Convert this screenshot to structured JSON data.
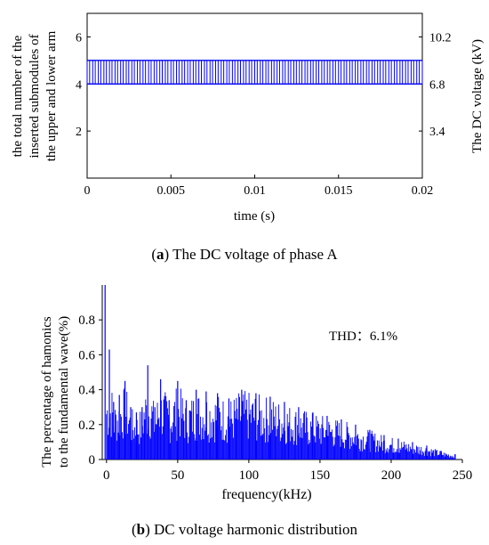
{
  "chart_data": [
    {
      "type": "line",
      "xlabel": "time (s)",
      "ylabel_lines": [
        "the total number of the",
        "inserted submodules of",
        "the upper and lower arm"
      ],
      "y2label": "The DC voltage (kV)",
      "xlim": [
        0,
        0.02
      ],
      "ylim": [
        0,
        7
      ],
      "y2lim": [
        0,
        11.9
      ],
      "xticks": [
        0,
        0.005,
        0.01,
        0.015,
        0.02
      ],
      "xtick_labels": [
        "0",
        "0.005",
        "0.01",
        "0.015",
        "0.02"
      ],
      "yticks": [
        2,
        4,
        6
      ],
      "ytick_labels": [
        "2",
        "4",
        "6"
      ],
      "y2ticks": [
        3.4,
        6.8,
        10.2
      ],
      "y2tick_labels": [
        "3.4",
        "6.8",
        "10.2"
      ],
      "series": [
        {
          "values_low": 4,
          "values_high": 5,
          "switching_pulses_count": 60,
          "x_start": 0,
          "x_end": 0.02
        }
      ],
      "caption_label": "a",
      "caption_text": " The DC voltage of phase A"
    },
    {
      "type": "bar",
      "xlabel": "frequency(kHz)",
      "ylabel_lines": [
        "The percentage of hamonics",
        "to the fundamental wave(%)"
      ],
      "xlim": [
        -3,
        250
      ],
      "ylim": [
        0,
        1.0
      ],
      "xticks": [
        0,
        50,
        100,
        150,
        200,
        250
      ],
      "xtick_labels": [
        "0",
        "50",
        "100",
        "150",
        "200",
        "250"
      ],
      "yticks": [
        0,
        0.2,
        0.4,
        0.6,
        0.8
      ],
      "ytick_labels": [
        "0",
        "0.2",
        "0.4",
        "0.6",
        "0.8"
      ],
      "annotation": "THD：6.1%",
      "peaks": [
        {
          "x": -1,
          "value": 1.0
        },
        {
          "x": 2,
          "value": 0.63
        },
        {
          "x": 5,
          "value": 0.33
        },
        {
          "x": 9,
          "value": 0.37
        },
        {
          "x": 13,
          "value": 0.45
        },
        {
          "x": 17,
          "value": 0.3
        },
        {
          "x": 21,
          "value": 0.27
        },
        {
          "x": 25,
          "value": 0.3
        },
        {
          "x": 29,
          "value": 0.54
        },
        {
          "x": 34,
          "value": 0.3
        },
        {
          "x": 38,
          "value": 0.46
        },
        {
          "x": 44,
          "value": 0.34
        },
        {
          "x": 50,
          "value": 0.45
        },
        {
          "x": 56,
          "value": 0.34
        },
        {
          "x": 63,
          "value": 0.4
        },
        {
          "x": 70,
          "value": 0.39
        },
        {
          "x": 78,
          "value": 0.38
        },
        {
          "x": 86,
          "value": 0.35
        },
        {
          "x": 95,
          "value": 0.4
        },
        {
          "x": 105,
          "value": 0.38
        },
        {
          "x": 115,
          "value": 0.36
        },
        {
          "x": 125,
          "value": 0.33
        },
        {
          "x": 135,
          "value": 0.3
        },
        {
          "x": 145,
          "value": 0.27
        },
        {
          "x": 155,
          "value": 0.25
        },
        {
          "x": 165,
          "value": 0.23
        },
        {
          "x": 175,
          "value": 0.2
        },
        {
          "x": 185,
          "value": 0.17
        },
        {
          "x": 195,
          "value": 0.14
        },
        {
          "x": 205,
          "value": 0.12
        },
        {
          "x": 215,
          "value": 0.1
        },
        {
          "x": 225,
          "value": 0.08
        },
        {
          "x": 235,
          "value": 0.05
        },
        {
          "x": 245,
          "value": 0.03
        }
      ],
      "caption_label": "b",
      "caption_text": " DC voltage harmonic distribution"
    }
  ]
}
